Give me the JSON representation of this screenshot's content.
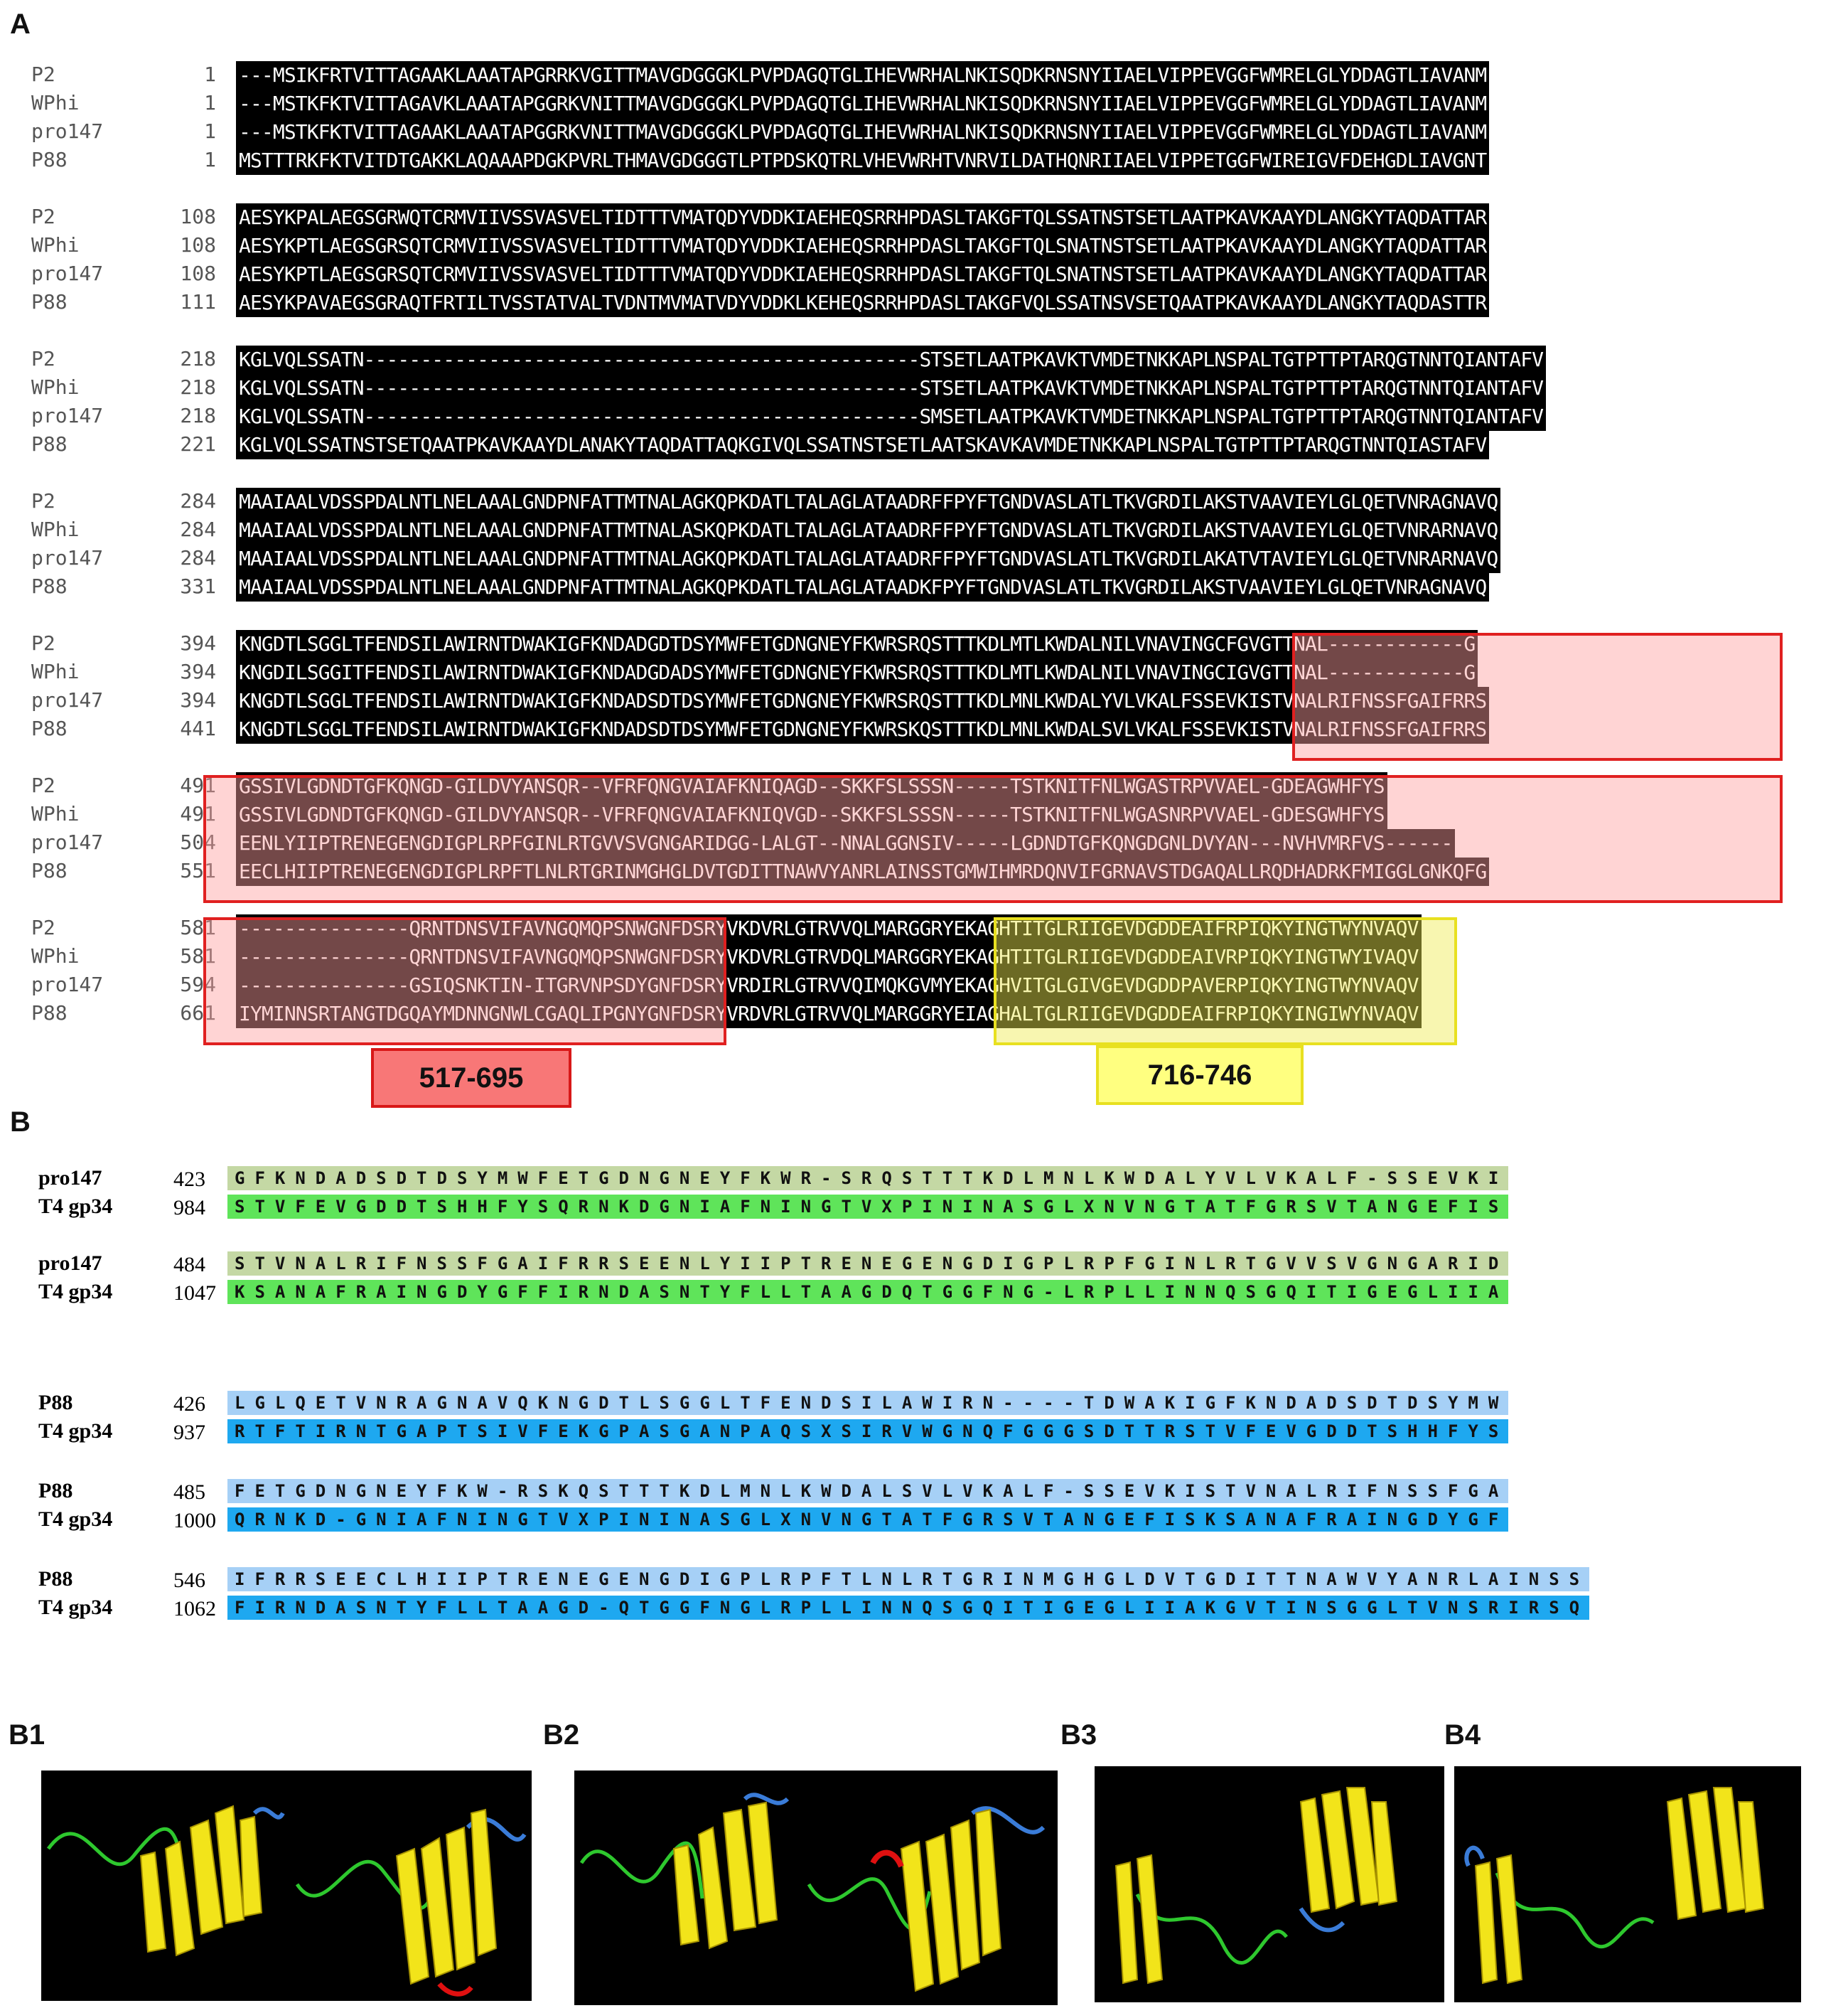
{
  "panel_labels": {
    "a": "A",
    "b": "B",
    "b1": "B1",
    "b2": "B2",
    "b3": "B3",
    "b4": "B4"
  },
  "alignment": [
    {
      "rows": [
        {
          "name": "P2",
          "start": "1",
          "seq": "---MSIKFRTVITTAGAAKLAAATAPGRRKVGITTMAVGDGGGKLPVPDAGQTGLIHEVWRHALNKISQDKRNSNYIIAELVIPPEVGGFWMRELGLYDDAGTLIAVANM"
        },
        {
          "name": "WPhi",
          "start": "1",
          "seq": "---MSTKFKTVITTAGAVKLAAATAPGGRKVNITTMAVGDGGGKLPVPDAGQTGLIHEVWRHALNKISQDKRNSNYIIAELVIPPEVGGFWMRELGLYDDAGTLIAVANM"
        },
        {
          "name": "pro147",
          "start": "1",
          "seq": "---MSTKFKTVITTAGAAKLAAATAPGGRKVNITTMAVGDGGGKLPVPDAGQTGLIHEVWRHALNKISQDKRNSNYIIAELVIPPEVGGFWMRELGLYDDAGTLIAVANM"
        },
        {
          "name": "P88",
          "start": "1",
          "seq": "MSTTTRKFKTVITDTGAKKLAQAAAPDGKPVRLTHMAVGDGGGTLPTPDSKQTRLVHEVWRHTVNRVILDATHQNRIIAELVIPPETGGFWIREIGVFDEHGDLIAVGNT"
        }
      ]
    },
    {
      "rows": [
        {
          "name": "P2",
          "start": "108",
          "seq": "AESYKPALAEGSGRWQTCRMVIIVSSVASVELTIDTTTVMATQDYVDDKIAEHEQSRRHPDASLTAKGFTQLSSATNSTSETLAATPKAVKAAYDLANGKYTAQDATTAR"
        },
        {
          "name": "WPhi",
          "start": "108",
          "seq": "AESYKPTLAEGSGRSQTCRMVIIVSSVASVELTIDTTTVMATQDYVDDKIAEHEQSRRHPDASLTAKGFTQLSNATNSTSETLAATPKAVKAAYDLANGKYTAQDATTAR"
        },
        {
          "name": "pro147",
          "start": "108",
          "seq": "AESYKPTLAEGSGRSQTCRMVIIVSSVASVELTIDTTTVMATQDYVDDKIAEHEQSRRHPDASLTAKGFTQLSNATNSTSETLAATPKAVKAAYDLANGKYTAQDATTAR"
        },
        {
          "name": "P88",
          "start": "111",
          "seq": "AESYKPAVAEGSGRAQTFRTILTVSSTATVALTVDNTMVMATVDYVDDKLKEHEQSRRHPDASLTAKGFVQLSSATNSVSETQAATPKAVKAAYDLANGKYTAQDASTTR"
        }
      ]
    },
    {
      "rows": [
        {
          "name": "P2",
          "start": "218",
          "seq": "KGLVQLSSATN-------------------------------------------------STSETLAATPKAVKTVMDETNKKAPLNSPALTGTPTTPTARQGTNNTQIANTAFV"
        },
        {
          "name": "WPhi",
          "start": "218",
          "seq": "KGLVQLSSATN-------------------------------------------------STSETLAATPKAVKTVMDETNKKAPLNSPALTGTPTTPTARQGTNNTQIANTAFV"
        },
        {
          "name": "pro147",
          "start": "218",
          "seq": "KGLVQLSSATN-------------------------------------------------SMSETLAATPKAVKTVMDETNKKAPLNSPALTGTPTTPTARQGTNNTQIANTAFV"
        },
        {
          "name": "P88",
          "start": "221",
          "seq": "KGLVQLSSATNSTSETQAATPKAVKAAYDLANAKYTAQDATTAQKGIVQLSSATNSTSETLAATSKAVKAVMDETNKKAPLNSPALTGTPTTPTARQGTNNTQIASTAFV"
        }
      ]
    },
    {
      "rows": [
        {
          "name": "P2",
          "start": "284",
          "seq": "MAAIAALVDSSPDALNTLNELAAALGNDPNFATTMTNALAGKQPKDATLTALAGLATAADRFFPYFTGNDVASLATLTKVGRDILAKSTVAAVIEYLGLQETVNRAGNAVQ"
        },
        {
          "name": "WPhi",
          "start": "284",
          "seq": "MAAIAALVDSSPDALNTLNELAAALGNDPNFATTMTNALASKQPKDATLTALAGLATAADRFFPYFTGNDVASLATLTKVGRDILAKSTVAAVIEYLGLQETVNRARNAVQ"
        },
        {
          "name": "pro147",
          "start": "284",
          "seq": "MAAIAALVDSSPDALNTLNELAAALGNDPNFATTMTNALAGKQPKDATLTALAGLATAADRFFPYFTGNDVASLATLTKVGRDILAKATVTAVIEYLGLQETVNRARNAVQ"
        },
        {
          "name": "P88",
          "start": "331",
          "seq": "MAAIAALVDSSPDALNTLNELAAALGNDPNFATTMTNALAGKQPKDATLTALAGLATAADKFPYFTGNDVASLATLTKVGRDILAKSTVAAVIEYLGLQETVNRAGNAVQ"
        }
      ]
    },
    {
      "rows": [
        {
          "name": "P2",
          "start": "394",
          "seq": "KNGDTLSGGLTFENDSILAWIRNTDWAKIGFKNDADGDTDSYMWFETGDNGNEYFKWRSRQSTTTKDLMTLKWDALNILVNAVINGCFGVGTTNAL------------G"
        },
        {
          "name": "WPhi",
          "start": "394",
          "seq": "KNGDILSGGITFENDSILAWIRNTDWAKIGFKNDADGDADSYMWFETGDNGNEYFKWRSRQSTTTKDLMTLKWDALNILVNAVINGCIGVGTTNAL------------G"
        },
        {
          "name": "pro147",
          "start": "394",
          "seq": "KNGDTLSGGLTFENDSILAWIRNTDWAKIGFKNDADSDTDSYMWFETGDNGNEYFKWRSRQSTTTKDLMNLKWDALYVLVKALFSSEVKISTVNALRIFNSSFGAIFRRS"
        },
        {
          "name": "P88",
          "start": "441",
          "seq": "KNGDTLSGGLTFENDSILAWIRNTDWAKIGFKNDADSDTDSYMWFETGDNGNEYFKWRSKQSTTTKDLMNLKWDALSVLVKALFSSEVKISTVNALRIFNSSFGAIFRRS"
        }
      ]
    },
    {
      "rows": [
        {
          "name": "P2",
          "start": "491",
          "seq": "GSSIVLGDNDTGFKQNGD-GILDVYANSQR--VFRFQNGVAIAFKNIQAGD--SKKFSLSSSN-----TSTKNITFNLWGASTRPVVAEL-GDEAGWHFYS"
        },
        {
          "name": "WPhi",
          "start": "491",
          "seq": "GSSIVLGDNDTGFKQNGD-GILDVYANSQR--VFRFQNGVAIAFKNIQVGD--SKKFSLSSSN-----TSTKNITFNLWGASNRPVVAEL-GDESGWHFYS"
        },
        {
          "name": "pro147",
          "start": "504",
          "seq": "EENLYIIPTRENEGENGDIGPLRPFGINLRTGVVSVGNGARIDGG-LALGT--NNALGGNSIV-----LGDNDTGFKQNGDGNLDVYAN---NVHVMRFVS------"
        },
        {
          "name": "P88",
          "start": "551",
          "seq": "EECLHIIPTRENEGENGDIGPLRPFTLNLRTGRINMGHGLDVTGDITTNAWVYANRLAINSSTGMWIHMRDQNVIFGRNAVSTDGAQALLRQDHADRKFMIGGLGNKQFG"
        }
      ]
    },
    {
      "rows": [
        {
          "name": "P2",
          "start": "581",
          "seq": "---------------QRNTDNSVIFAVNGQMQPSNWGNFDSRYVKDVRLGTRVVQLMARGGRYEKAGHTITGLRIIGEVDGDDEAIFRPIQKYINGTWYNVAQV"
        },
        {
          "name": "WPhi",
          "start": "581",
          "seq": "---------------QRNTDNSVIFAVNGQMQPSNWGNFDSRYVKDVRLGTRVDQLMARGGRYEKAGHTITGLRIIGEVDGDDEAIVRPIQKYINGTWYIVAQV"
        },
        {
          "name": "pro147",
          "start": "594",
          "seq": "---------------GSIQSNKTIN-ITGRVNPSDYGNFDSRYVRDIRLGTRVVQIMQKGVMYEKAGHVITGLGIVGEVDGDDPAVERPIQKYINGTWYNVAQV"
        },
        {
          "name": "P88",
          "start": "661",
          "seq": "IYMINNSRTANGTDGQAYMDNNGNWLCGAQLIPGNYGNFDSRYVRDVRLGTRVVQLMARGGRYEIAGHALTGLRIIGEVDGDDEAIFRPIQKYINGIWYNVAQV"
        }
      ]
    }
  ],
  "tags": {
    "red": "517-695",
    "yellow": "716-746"
  },
  "pairwise": [
    {
      "q_name": "pro147",
      "q_start": "423",
      "q_seq": "GFKNDADSDTDSYMWFETGDNGNEYFKWR-SRQSTTTKDLMNLKWDALYVLVKALF-SSEVKI",
      "s_name": "T4 gp34",
      "s_start": "984",
      "s_seq": "STVFEVGDDTSHHFYSQRNKDGNIAFNINGTVXPININASGLXNVNGTATFGRSVTANGEFIS",
      "q_color": "olive",
      "s_color": "green"
    },
    {
      "q_name": "pro147",
      "q_start": "484",
      "q_seq": "STVNALRIFNSSFGAIFRRSEENLYIIPTRENEGENGDIGPLRPFGINLRTGVVSVGNGARID",
      "s_name": "T4 gp34",
      "s_start": "1047",
      "s_seq": "KSANAFRAINGDYGFFIRNDASNTYFLLTAAGDQTGGFNG-LRPLLINNQSGQITIGEGLIIA",
      "q_color": "olive",
      "s_color": "green"
    },
    {
      "q_name": "P88",
      "q_start": "426",
      "q_seq": "LGLQETVNRAGNAVQKNGDTLSGGLTFENDSILAWIRN----TDWAKIGFKNDADSDTDSYMW",
      "s_name": "T4 gp34",
      "s_start": "937",
      "s_seq": "RTFTIRNTGAPTSIVFEKGPASGANPAQSXSIRVWGNQFGGGSDTTRSTVFEVGDDTSHHFYS",
      "q_color": "lblue",
      "s_color": "blue"
    },
    {
      "q_name": "P88",
      "q_start": "485",
      "q_seq": "FETGDNGNEYFKW-RSKQSTTTKDLMNLKWDALSVLVKALF-SSEVKISTVNALRIFNSSFGA",
      "s_name": "T4 gp34",
      "s_start": "1000",
      "s_seq": "QRNKD-GNIAFNINGTVXPININASGLXNVNGTATFGRSVTANGEFISKSANAFRAINGDYGF",
      "q_color": "lblue",
      "s_color": "blue"
    },
    {
      "q_name": "P88",
      "q_start": "546",
      "q_seq": "IFRRSEECLHIIPTRENEGENGDIGPLRPFTLNLRTGRINMGHGLDVTGDITTNAWVYANRLAINSS",
      "s_name": "T4 gp34",
      "s_start": "1062",
      "s_seq": "FIRNDASNTYFLLTAAGD-QTGGFNGLRPLLINNQSGQITIGEGLIIAKGVTINSGGLTVNSRIRSQ",
      "q_color": "lblue",
      "s_color": "blue"
    }
  ]
}
